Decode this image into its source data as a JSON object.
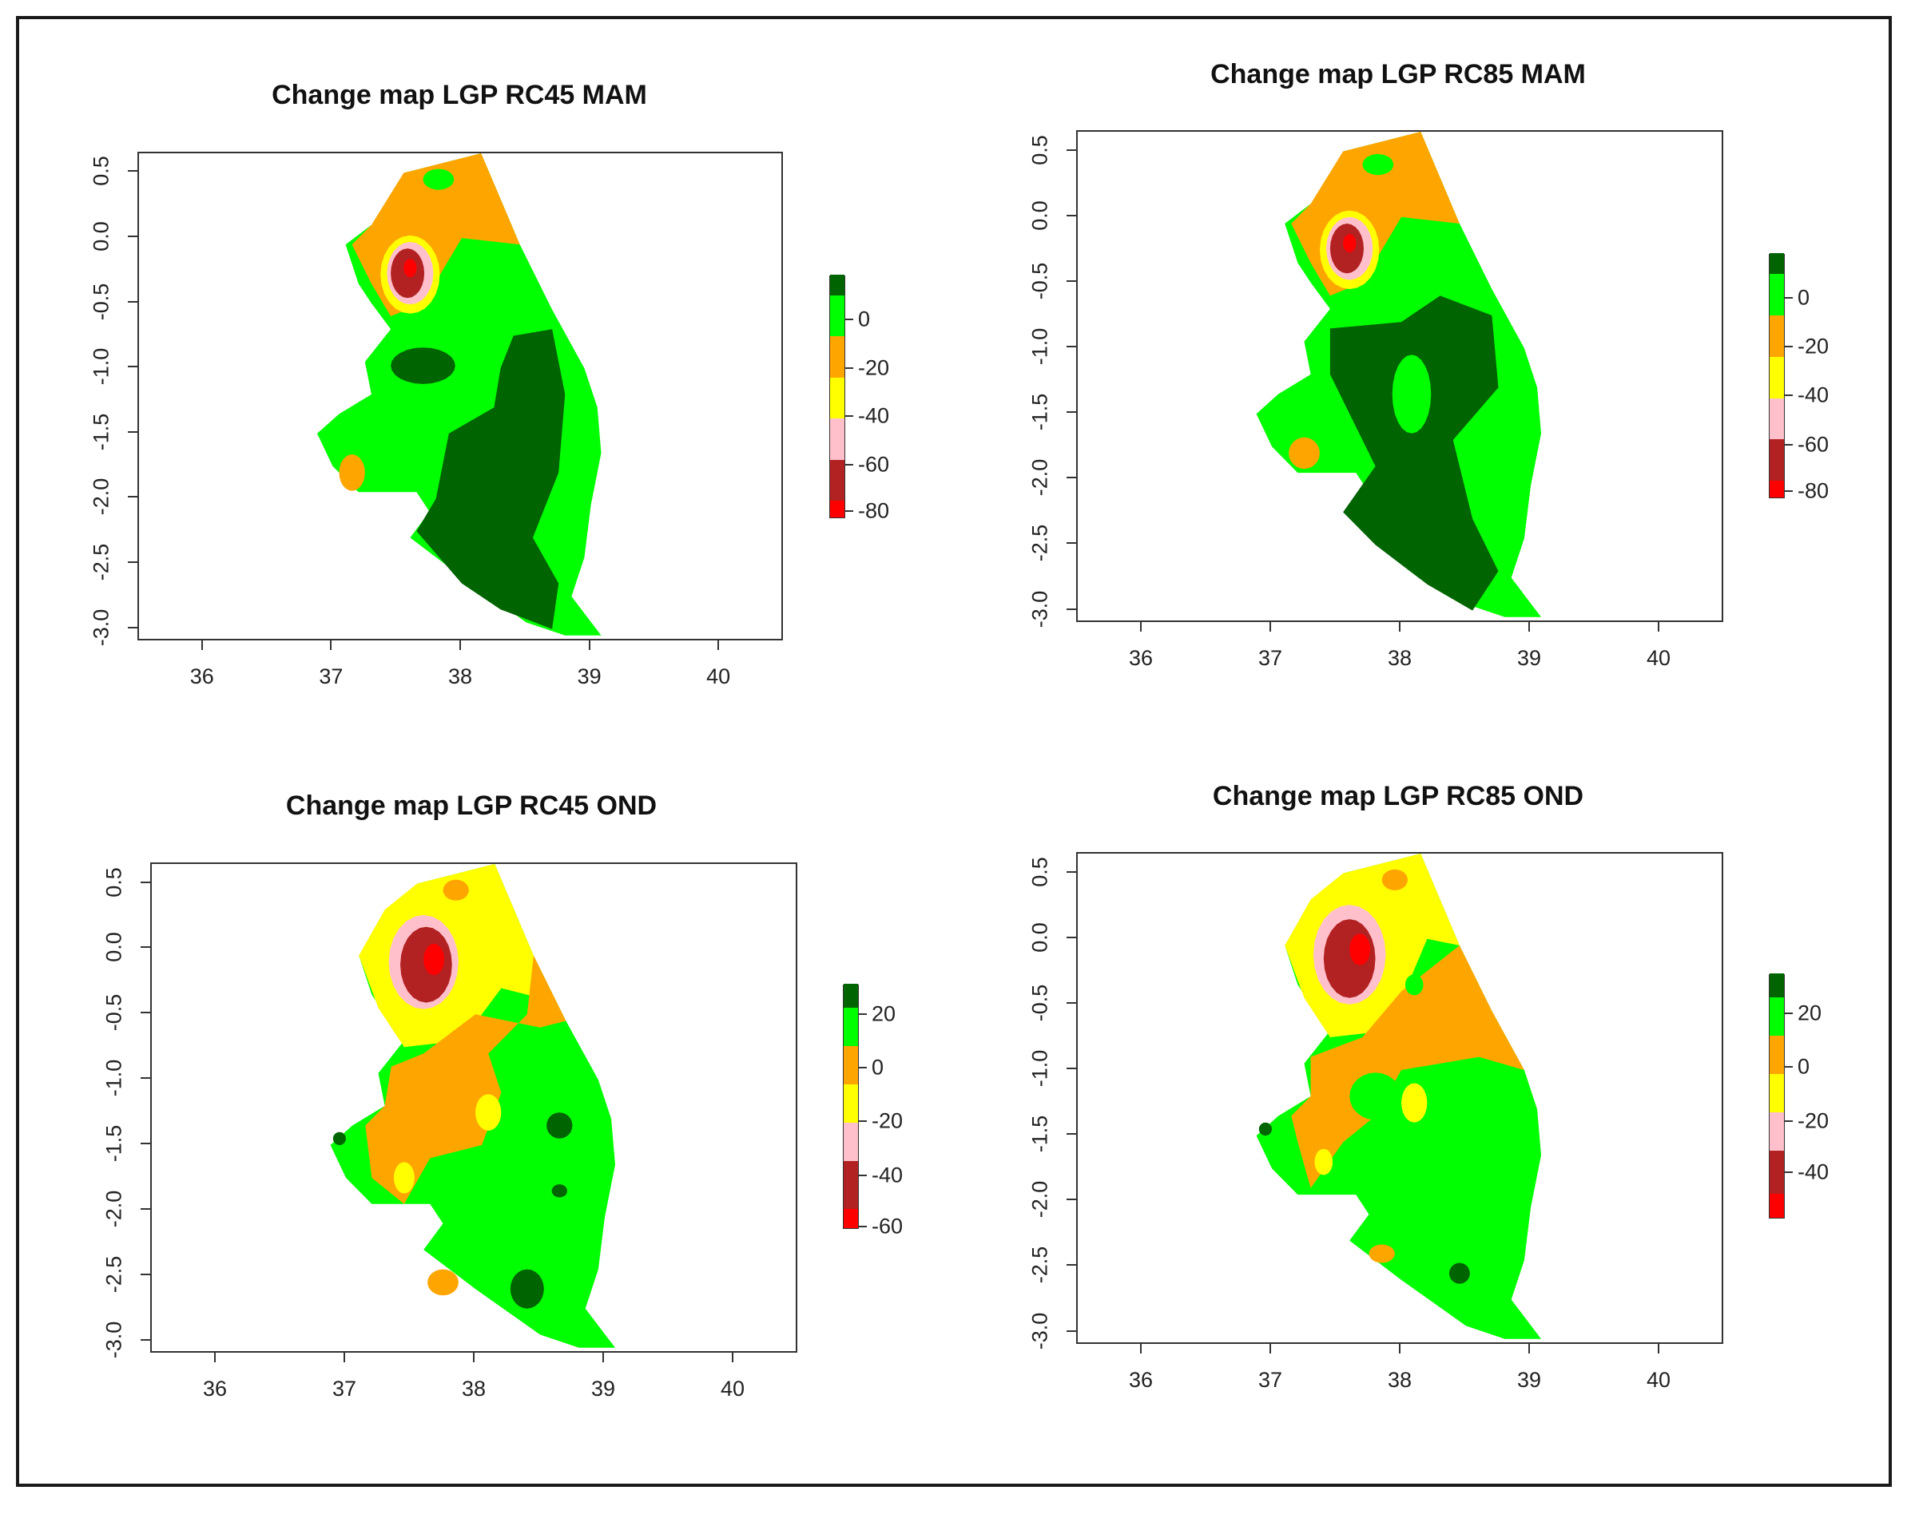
{
  "figure": {
    "panels": [
      {
        "id": "rc45-mam",
        "title": "Change map LGP RC45 MAM",
        "yticks": [
          "0.5",
          "0.0",
          "-0.5",
          "-1.0",
          "-1.5",
          "-2.0",
          "-2.5",
          "-3.0"
        ],
        "xticks": [
          "36",
          "37",
          "38",
          "39",
          "40"
        ],
        "legend": {
          "colors": [
            "#ff0000",
            "#b22222",
            "#ffc0cb",
            "#ffff00",
            "#ffa500",
            "#00ff00",
            "#006400"
          ],
          "labels": [
            "0",
            "-20",
            "-40",
            "-60",
            "-80"
          ]
        },
        "variant": "mam45"
      },
      {
        "id": "rc85-mam",
        "title": "Change map LGP RC85 MAM",
        "yticks": [
          "0.5",
          "0.0",
          "-0.5",
          "-1.0",
          "-1.5",
          "-2.0",
          "-2.5",
          "-3.0"
        ],
        "xticks": [
          "36",
          "37",
          "38",
          "39",
          "40"
        ],
        "legend": {
          "colors": [
            "#ff0000",
            "#b22222",
            "#ffc0cb",
            "#ffff00",
            "#ffa500",
            "#00ff00",
            "#006400"
          ],
          "labels": [
            "0",
            "-20",
            "-40",
            "-60",
            "-80"
          ]
        },
        "variant": "mam85"
      },
      {
        "id": "rc45-ond",
        "title": "Change map LGP RC45 OND",
        "yticks": [
          "0.5",
          "0.0",
          "-0.5",
          "-1.0",
          "-1.5",
          "-2.0",
          "-2.5",
          "-3.0"
        ],
        "xticks": [
          "36",
          "37",
          "38",
          "39",
          "40"
        ],
        "legend": {
          "colors": [
            "#ff0000",
            "#b22222",
            "#ffc0cb",
            "#ffff00",
            "#ffa500",
            "#00ff00",
            "#006400"
          ],
          "labels": [
            "20",
            "0",
            "-20",
            "-40",
            "-60"
          ]
        },
        "variant": "ond45"
      },
      {
        "id": "rc85-ond",
        "title": "Change map LGP RC85 OND",
        "yticks": [
          "0.5",
          "0.0",
          "-0.5",
          "-1.0",
          "-1.5",
          "-2.0",
          "-2.5",
          "-3.0"
        ],
        "xticks": [
          "36",
          "37",
          "38",
          "39",
          "40"
        ],
        "legend": {
          "colors": [
            "#ff0000",
            "#b22222",
            "#ffc0cb",
            "#ffff00",
            "#ffa500",
            "#00ff00",
            "#006400"
          ],
          "labels": [
            "20",
            "0",
            "-20",
            "-40"
          ]
        },
        "variant": "ond85"
      }
    ],
    "axis": {
      "xlim": [
        35.5,
        40.5
      ],
      "ylim": [
        -3.1,
        0.65
      ]
    }
  }
}
